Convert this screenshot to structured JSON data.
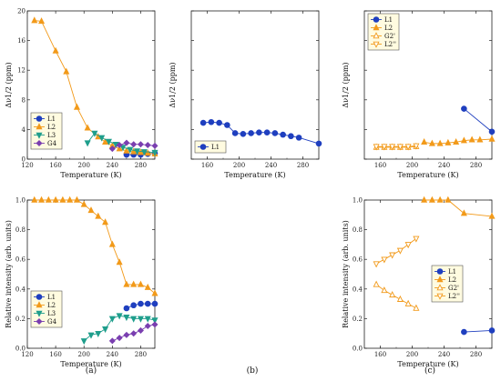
{
  "chart_data": [
    {
      "id": "a-top",
      "type": "line",
      "xlabel": "Temperature (K)",
      "ylabel": "Δν1/2 (ppm)",
      "xlim": [
        120,
        300
      ],
      "ylim": [
        0,
        20
      ],
      "xticks": [
        "120",
        "160",
        "200",
        "240",
        "280"
      ],
      "yticks": [
        "0",
        "4",
        "8",
        "12",
        "16",
        "20"
      ],
      "legend": "bottom-left",
      "series": [
        {
          "name": "L1",
          "color": "#1f3fbf",
          "marker": "circle",
          "x": [
            260,
            270,
            280,
            290,
            300
          ],
          "y": [
            0.6,
            0.6,
            0.6,
            0.7,
            0.8
          ]
        },
        {
          "name": "L2",
          "color": "#f29a1a",
          "marker": "triangle",
          "x": [
            130,
            140,
            160,
            175,
            190,
            205,
            220,
            230,
            240,
            250,
            260,
            270,
            280,
            290,
            300
          ],
          "y": [
            18.7,
            18.6,
            14.6,
            11.8,
            7,
            4.2,
            3,
            2.3,
            1.8,
            1.4,
            1.1,
            1,
            0.9,
            0.8,
            0.7
          ]
        },
        {
          "name": "L3",
          "color": "#1f9e8c",
          "marker": "triangle-down",
          "x": [
            205,
            215,
            225,
            235,
            245,
            255,
            265,
            275,
            285,
            300
          ],
          "y": [
            2.2,
            3.5,
            2.9,
            2.4,
            2,
            1.6,
            1.3,
            1.1,
            1,
            0.9
          ]
        },
        {
          "name": "G4",
          "color": "#7a3fb0",
          "marker": "diamond",
          "x": [
            240,
            250,
            260,
            270,
            280,
            290,
            300
          ],
          "y": [
            1.4,
            1.9,
            2.2,
            2,
            2,
            1.9,
            1.8
          ]
        }
      ],
      "sublabel": ""
    },
    {
      "id": "b-top",
      "type": "line",
      "xlabel": "Temperature (K)",
      "ylabel": "Δν1/2 (ppm)",
      "xlim": [
        140,
        300
      ],
      "ylim": [
        0,
        20
      ],
      "xticks": [
        "160",
        "200",
        "240",
        "280"
      ],
      "yticks": [
        "",
        "",
        "",
        "",
        "",
        ""
      ],
      "legend": "bottom-left",
      "series": [
        {
          "name": "L1",
          "color": "#1f3fbf",
          "marker": "circle",
          "x": [
            155,
            165,
            175,
            185,
            195,
            205,
            215,
            225,
            235,
            245,
            255,
            265,
            275,
            300
          ],
          "y": [
            4.9,
            5,
            4.9,
            4.6,
            3.5,
            3.4,
            3.5,
            3.6,
            3.6,
            3.5,
            3.3,
            3.1,
            2.9,
            2.1
          ]
        }
      ],
      "sublabel": ""
    },
    {
      "id": "c-top",
      "type": "line",
      "xlabel": "Temperature (K)",
      "ylabel": "Δν1/2 (ppm)",
      "xlim": [
        140,
        300
      ],
      "ylim": [
        0,
        20
      ],
      "xticks": [
        "160",
        "200",
        "240",
        "280"
      ],
      "yticks": [
        "",
        "",
        "",
        "",
        "",
        ""
      ],
      "legend": "top-left",
      "series": [
        {
          "name": "L1",
          "color": "#1f3fbf",
          "marker": "circle",
          "x": [
            265,
            300
          ],
          "y": [
            6.8,
            3.7
          ]
        },
        {
          "name": "L2",
          "color": "#f29a1a",
          "marker": "triangle",
          "x": [
            215,
            225,
            235,
            245,
            255,
            265,
            275,
            285,
            300
          ],
          "y": [
            2.3,
            2.1,
            2.1,
            2.2,
            2.3,
            2.5,
            2.6,
            2.6,
            2.7
          ]
        },
        {
          "name": "G2'",
          "color": "#f29a1a",
          "marker": "triangle-open",
          "x": [
            155,
            165,
            175,
            185,
            195,
            205
          ],
          "y": [
            1.6,
            1.6,
            1.6,
            1.6,
            1.6,
            1.7
          ]
        },
        {
          "name": "L2''",
          "color": "#f29a1a",
          "marker": "triangle-down-open",
          "x": [
            155,
            165,
            175,
            185,
            195,
            205
          ],
          "y": [
            1.7,
            1.7,
            1.7,
            1.7,
            1.7,
            1.8
          ]
        }
      ],
      "sublabel": ""
    },
    {
      "id": "a-bottom",
      "type": "line",
      "xlabel": "Temperature (K)",
      "ylabel": "Relative intensity (arb. units)",
      "xlim": [
        120,
        300
      ],
      "ylim": [
        0,
        1
      ],
      "xticks": [
        "120",
        "160",
        "200",
        "240",
        "280"
      ],
      "yticks": [
        "0.0",
        "0.2",
        "0.4",
        "0.6",
        "0.8",
        "1.0"
      ],
      "legend": "bottom-left",
      "series": [
        {
          "name": "L1",
          "color": "#1f3fbf",
          "marker": "circle",
          "x": [
            260,
            270,
            280,
            290,
            300
          ],
          "y": [
            0.27,
            0.29,
            0.3,
            0.3,
            0.3
          ]
        },
        {
          "name": "L2",
          "color": "#f29a1a",
          "marker": "triangle",
          "x": [
            130,
            140,
            150,
            160,
            170,
            180,
            190,
            200,
            210,
            220,
            230,
            240,
            250,
            260,
            270,
            280,
            290,
            300
          ],
          "y": [
            1,
            1,
            1,
            1,
            1,
            1,
            1,
            0.97,
            0.93,
            0.89,
            0.85,
            0.7,
            0.58,
            0.43,
            0.43,
            0.43,
            0.41,
            0.37
          ]
        },
        {
          "name": "L3",
          "color": "#1f9e8c",
          "marker": "triangle-down",
          "x": [
            200,
            210,
            220,
            230,
            240,
            250,
            260,
            270,
            280,
            290,
            300
          ],
          "y": [
            0.05,
            0.09,
            0.1,
            0.13,
            0.2,
            0.22,
            0.21,
            0.2,
            0.2,
            0.2,
            0.19
          ]
        },
        {
          "name": "G4",
          "color": "#7a3fb0",
          "marker": "diamond",
          "x": [
            240,
            250,
            260,
            270,
            280,
            290,
            300
          ],
          "y": [
            0.05,
            0.07,
            0.09,
            0.1,
            0.12,
            0.15,
            0.16
          ]
        }
      ],
      "sublabel": "(a)"
    },
    {
      "id": "c-bottom",
      "type": "line",
      "xlabel": "Temperature (K)",
      "ylabel": "Relative intensity (arb. units)",
      "xlim": [
        140,
        300
      ],
      "ylim": [
        0,
        1
      ],
      "xticks": [
        "160",
        "200",
        "240",
        "280"
      ],
      "yticks": [
        "0.0",
        "0.2",
        "0.4",
        "0.6",
        "0.8",
        "1.0"
      ],
      "legend": "middle-right",
      "series": [
        {
          "name": "L1",
          "color": "#1f3fbf",
          "marker": "circle",
          "x": [
            265,
            300
          ],
          "y": [
            0.11,
            0.12
          ]
        },
        {
          "name": "L2",
          "color": "#f29a1a",
          "marker": "triangle",
          "x": [
            215,
            225,
            235,
            245,
            265,
            300
          ],
          "y": [
            1,
            1,
            1,
            1,
            0.91,
            0.89
          ]
        },
        {
          "name": "G2'",
          "color": "#f29a1a",
          "marker": "triangle-open",
          "x": [
            155,
            165,
            175,
            185,
            195,
            205
          ],
          "y": [
            0.43,
            0.39,
            0.36,
            0.33,
            0.3,
            0.27
          ]
        },
        {
          "name": "L2''",
          "color": "#f29a1a",
          "marker": "triangle-down-open",
          "x": [
            155,
            165,
            175,
            185,
            195,
            205
          ],
          "y": [
            0.57,
            0.6,
            0.63,
            0.66,
            0.7,
            0.74
          ]
        }
      ],
      "sublabel": "(c)"
    }
  ],
  "subplot_labels": {
    "a": "(a)",
    "b": "(b)",
    "c": "(c)"
  }
}
